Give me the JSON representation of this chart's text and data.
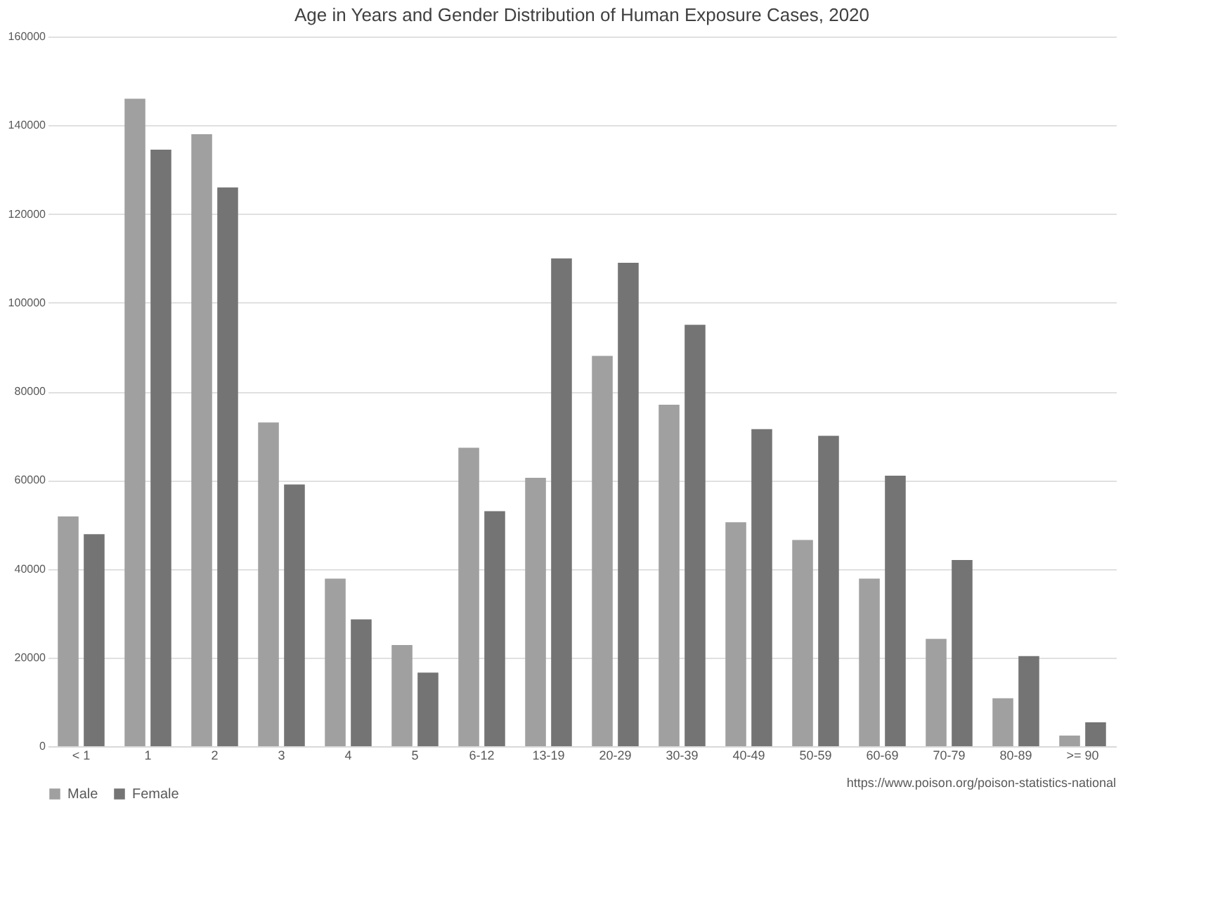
{
  "chart_data": {
    "type": "bar",
    "title": "Age in Years and Gender Distribution of Human Exposure Cases, 2020",
    "categories": [
      "< 1",
      "1",
      "2",
      "3",
      "4",
      "5",
      "6-12",
      "13-19",
      "20-29",
      "30-39",
      "40-49",
      "50-59",
      "60-69",
      "70-79",
      "80-89",
      ">= 90"
    ],
    "series": [
      {
        "name": "Male",
        "color": "#a0a0a0",
        "values": [
          51800,
          146000,
          138000,
          73000,
          37800,
          22800,
          67300,
          60500,
          88000,
          77000,
          50500,
          46500,
          37800,
          24200,
          10800,
          2400
        ]
      },
      {
        "name": "Female",
        "color": "#747474",
        "values": [
          47800,
          134500,
          126000,
          59000,
          28600,
          16600,
          53000,
          110000,
          109000,
          95000,
          71500,
          70000,
          61000,
          42000,
          20300,
          5400
        ]
      }
    ],
    "ylim": [
      0,
      160000
    ],
    "yticks": [
      0,
      20000,
      40000,
      60000,
      80000,
      100000,
      120000,
      140000,
      160000
    ],
    "grid": "y",
    "legend": "bottom",
    "annotations": [
      "https://www.poison.org/poison-statistics-national"
    ]
  }
}
